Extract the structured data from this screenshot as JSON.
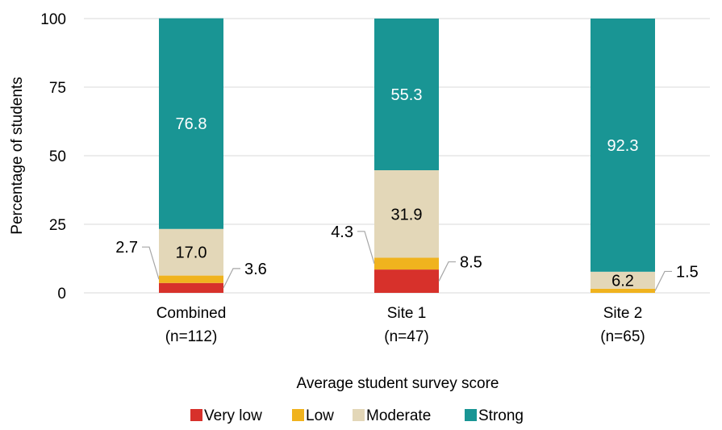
{
  "chart_data": {
    "type": "bar",
    "stacked": true,
    "title": "",
    "xlabel": "Average student survey score",
    "ylabel": "Percentage of students",
    "ylim": [
      0,
      100
    ],
    "yticks": [
      0,
      25,
      50,
      75,
      100
    ],
    "categories": [
      {
        "line1": "Combined",
        "line2": "(n=112)"
      },
      {
        "line1": "Site 1",
        "line2": "(n=47)"
      },
      {
        "line1": "Site 2",
        "line2": "(n=65)"
      }
    ],
    "series": [
      {
        "name": "Very low",
        "color": "#d7312b",
        "text_color": "#000000",
        "values": [
          3.6,
          8.5,
          0.0
        ],
        "labels": [
          "3.6",
          "8.5",
          ""
        ],
        "label_placement": [
          "callout-right",
          "callout-right",
          "none"
        ]
      },
      {
        "name": "Low",
        "color": "#f0b31e",
        "text_color": "#000000",
        "values": [
          2.7,
          4.3,
          1.5
        ],
        "labels": [
          "2.7",
          "4.3",
          "1.5"
        ],
        "label_placement": [
          "callout-left",
          "callout-left",
          "callout-right"
        ]
      },
      {
        "name": "Moderate",
        "color": "#e3d7b8",
        "text_color": "#000000",
        "values": [
          17.0,
          31.9,
          6.2
        ],
        "labels": [
          "17.0",
          "31.9",
          "6.2"
        ],
        "label_placement": [
          "inside",
          "inside",
          "inside"
        ]
      },
      {
        "name": "Strong",
        "color": "#199594",
        "text_color": "#ffffff",
        "values": [
          76.8,
          55.3,
          92.3
        ],
        "labels": [
          "76.8",
          "55.3",
          "92.3"
        ],
        "label_placement": [
          "inside",
          "inside",
          "inside"
        ]
      }
    ],
    "grid": true,
    "gridline_color": "#d9d9d9",
    "legend_position": "bottom"
  }
}
